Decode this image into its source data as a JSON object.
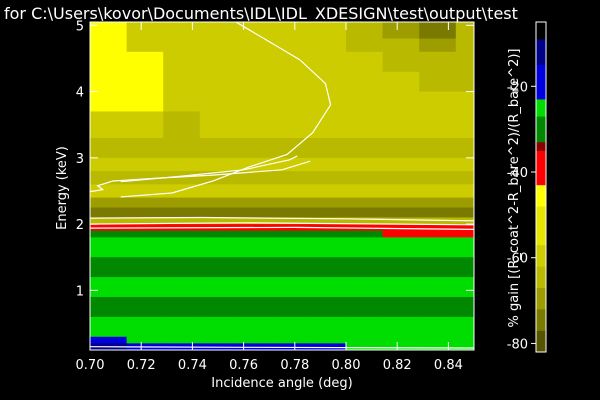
{
  "chart_data": {
    "type": "heatmap",
    "title": "for C:\\Users\\kovor\\Documents\\IDL\\IDL_XDESIGN\\test\\output\\test",
    "xlabel": "Incidence angle (deg)",
    "ylabel": "Energy (keV)",
    "xlim": [
      0.7,
      0.85
    ],
    "ylim": [
      0.1,
      5.05
    ],
    "x_ticks": [
      "0.70",
      "0.72",
      "0.74",
      "0.76",
      "0.78",
      "0.80",
      "0.82",
      "0.84"
    ],
    "y_ticks": [
      "1",
      "2",
      "3",
      "4",
      "5"
    ],
    "x_tick_values": [
      0.7,
      0.72,
      0.74,
      0.76,
      0.78,
      0.8,
      0.82,
      0.84
    ],
    "y_tick_values": [
      1,
      2,
      3,
      4,
      5
    ],
    "colorbar": {
      "label": "% gain [(R_coat^2-R_bare^2)/(R_bare^2)]",
      "range": [
        -82,
        -5
      ],
      "ticks": [
        "-20",
        "-40",
        "-60",
        "-80"
      ],
      "tick_values": [
        -20,
        -40,
        -60,
        -80
      ],
      "levels": [
        {
          "from": -82,
          "to": -77,
          "color": "#555500"
        },
        {
          "from": -77,
          "to": -72,
          "color": "#7a7a00"
        },
        {
          "from": -72,
          "to": -67,
          "color": "#9d9d00"
        },
        {
          "from": -67,
          "to": -62,
          "color": "#b9b900"
        },
        {
          "from": -62,
          "to": -57,
          "color": "#cccc00"
        },
        {
          "from": -57,
          "to": -48,
          "color": "#e6e600"
        },
        {
          "from": -48,
          "to": -43,
          "color": "#ffff00"
        },
        {
          "from": -43,
          "to": -35,
          "color": "#ff0000"
        },
        {
          "from": -35,
          "to": -33,
          "color": "#880000"
        },
        {
          "from": -33,
          "to": -27,
          "color": "#008800"
        },
        {
          "from": -27,
          "to": -23,
          "color": "#00dd00"
        },
        {
          "from": -23,
          "to": -15,
          "color": "#0000dd"
        },
        {
          "from": -15,
          "to": -9,
          "color": "#000088"
        },
        {
          "from": -9,
          "to": -5,
          "color": "#000000"
        }
      ]
    },
    "columns": [
      0.7,
      0.7143,
      0.7286,
      0.7429,
      0.7571,
      0.7714,
      0.7857,
      0.8,
      0.8143,
      0.8286,
      0.8429,
      0.85
    ],
    "bands": [
      {
        "y0": 4.8,
        "y1": 5.05,
        "values": [
          -48,
          -60,
          -62,
          -62,
          -62,
          -62,
          -62,
          -65,
          -72,
          -75,
          -66
        ]
      },
      {
        "y0": 4.6,
        "y1": 4.8,
        "values": [
          -48,
          -60,
          -62,
          -62,
          -62,
          -62,
          -62,
          -64,
          -66,
          -70,
          -64
        ]
      },
      {
        "y0": 4.3,
        "y1": 4.6,
        "values": [
          -48,
          -48,
          -62,
          -62,
          -62,
          -62,
          -62,
          -62,
          -64,
          -66,
          -64
        ]
      },
      {
        "y0": 4.0,
        "y1": 4.3,
        "values": [
          -48,
          -48,
          -62,
          -62,
          -62,
          -62,
          -62,
          -62,
          -62,
          -64,
          -64
        ]
      },
      {
        "y0": 3.7,
        "y1": 4.0,
        "values": [
          -48,
          -48,
          -62,
          -62,
          -62,
          -62,
          -62,
          -62,
          -62,
          -62,
          -62
        ]
      },
      {
        "y0": 3.3,
        "y1": 3.7,
        "values": [
          -62,
          -62,
          -64,
          -62,
          -62,
          -62,
          -62,
          -62,
          -62,
          -62,
          -62
        ]
      },
      {
        "y0": 3.0,
        "y1": 3.3,
        "values": [
          -67,
          -67,
          -67,
          -67,
          -67,
          -67,
          -67,
          -67,
          -67,
          -64,
          -64
        ]
      },
      {
        "y0": 2.8,
        "y1": 3.0,
        "values": [
          -62,
          -62,
          -62,
          -62,
          -62,
          -62,
          -62,
          -62,
          -62,
          -62,
          -62
        ]
      },
      {
        "y0": 2.6,
        "y1": 2.8,
        "values": [
          -67,
          -67,
          -67,
          -67,
          -67,
          -67,
          -67,
          -67,
          -67,
          -67,
          -67
        ]
      },
      {
        "y0": 2.4,
        "y1": 2.6,
        "values": [
          -62,
          -62,
          -62,
          -62,
          -62,
          -62,
          -62,
          -62,
          -62,
          -62,
          -62
        ]
      },
      {
        "y0": 2.25,
        "y1": 2.4,
        "values": [
          -70,
          -70,
          -70,
          -70,
          -70,
          -70,
          -70,
          -70,
          -70,
          -70,
          -70
        ]
      },
      {
        "y0": 2.1,
        "y1": 2.25,
        "values": [
          -74,
          -74,
          -74,
          -74,
          -74,
          -74,
          -74,
          -74,
          -74,
          -74,
          -74
        ]
      },
      {
        "y0": 2.0,
        "y1": 2.1,
        "values": [
          -65,
          -65,
          -65,
          -65,
          -65,
          -65,
          -65,
          -65,
          -65,
          -65,
          -65
        ]
      },
      {
        "y0": 1.9,
        "y1": 2.0,
        "values": [
          -40,
          -40,
          -40,
          -40,
          -40,
          -40,
          -40,
          -40,
          -40,
          -40,
          -40
        ]
      },
      {
        "y0": 1.8,
        "y1": 1.9,
        "values": [
          -30,
          -30,
          -30,
          -30,
          -30,
          -30,
          -30,
          -30,
          -40,
          -40,
          -40
        ]
      },
      {
        "y0": 1.5,
        "y1": 1.8,
        "values": [
          -26,
          -26,
          -26,
          -26,
          -26,
          -26,
          -26,
          -26,
          -26,
          -26,
          -26
        ]
      },
      {
        "y0": 1.2,
        "y1": 1.5,
        "values": [
          -29,
          -29,
          -29,
          -29,
          -29,
          -29,
          -29,
          -29,
          -29,
          -29,
          -29
        ]
      },
      {
        "y0": 0.9,
        "y1": 1.2,
        "values": [
          -26,
          -26,
          -26,
          -26,
          -26,
          -26,
          -26,
          -26,
          -26,
          -26,
          -26
        ]
      },
      {
        "y0": 0.6,
        "y1": 0.9,
        "values": [
          -29,
          -29,
          -29,
          -29,
          -29,
          -29,
          -29,
          -29,
          -29,
          -29,
          -29
        ]
      },
      {
        "y0": 0.3,
        "y1": 0.6,
        "values": [
          -26,
          -26,
          -26,
          -26,
          -26,
          -26,
          -26,
          -26,
          -26,
          -26,
          -26
        ]
      },
      {
        "y0": 0.2,
        "y1": 0.3,
        "values": [
          -20,
          -26,
          -26,
          -26,
          -26,
          -26,
          -26,
          -26,
          -26,
          -26,
          -26
        ]
      },
      {
        "y0": 0.1,
        "y1": 0.2,
        "values": [
          -12,
          -20,
          -20,
          -20,
          -20,
          -20,
          -20,
          -26,
          -26,
          -26,
          -26
        ]
      }
    ],
    "contours": [
      {
        "name": "contour-outer",
        "points": [
          [
            0.712,
            2.41
          ],
          [
            0.732,
            2.47
          ],
          [
            0.748,
            2.65
          ],
          [
            0.762,
            2.86
          ],
          [
            0.777,
            3.05
          ],
          [
            0.787,
            3.38
          ],
          [
            0.794,
            3.8
          ],
          [
            0.792,
            4.12
          ],
          [
            0.782,
            4.48
          ],
          [
            0.768,
            4.8
          ],
          [
            0.757,
            5.05
          ]
        ]
      },
      {
        "name": "contour-inner-1",
        "points": [
          [
            0.712,
            2.64
          ],
          [
            0.735,
            2.72
          ],
          [
            0.76,
            2.82
          ],
          [
            0.778,
            2.97
          ],
          [
            0.781,
            3.03
          ]
        ]
      },
      {
        "name": "contour-inner-2",
        "points": [
          [
            0.7,
            2.49
          ],
          [
            0.705,
            2.52
          ],
          [
            0.703,
            2.58
          ],
          [
            0.709,
            2.65
          ],
          [
            0.725,
            2.69
          ],
          [
            0.748,
            2.74
          ],
          [
            0.775,
            2.82
          ],
          [
            0.786,
            2.95
          ]
        ]
      },
      {
        "name": "contour-low-1",
        "points": [
          [
            0.7,
            2.09
          ],
          [
            0.744,
            2.1
          ],
          [
            0.8,
            2.08
          ],
          [
            0.832,
            2.06
          ],
          [
            0.85,
            2.05
          ]
        ]
      },
      {
        "name": "contour-low-2",
        "points": [
          [
            0.7,
            2.0
          ],
          [
            0.76,
            2.02
          ],
          [
            0.82,
            2.0
          ],
          [
            0.85,
            1.99
          ]
        ]
      },
      {
        "name": "contour-low-3",
        "points": [
          [
            0.7,
            1.94
          ],
          [
            0.78,
            1.95
          ],
          [
            0.85,
            1.92
          ]
        ]
      },
      {
        "name": "contour-bottom",
        "points": [
          [
            0.7,
            0.15
          ],
          [
            0.76,
            0.14
          ],
          [
            0.85,
            0.13
          ]
        ]
      }
    ]
  }
}
